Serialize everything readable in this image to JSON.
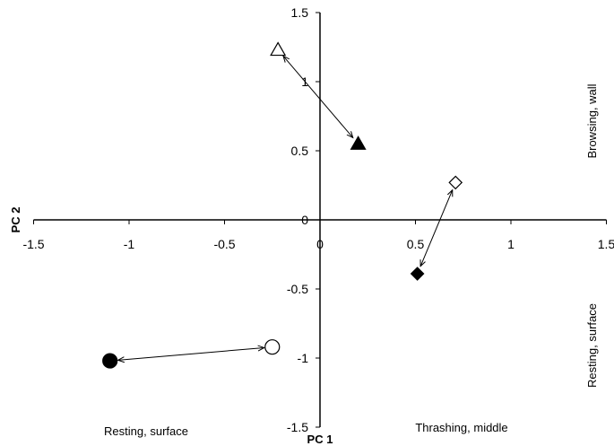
{
  "chart_data": {
    "type": "scatter",
    "xlabel": "PC 1",
    "ylabel": "PC 2",
    "xlim": [
      -1.5,
      1.5
    ],
    "ylim": [
      -1.5,
      1.5
    ],
    "x_ticks": [
      "-1.5",
      "-1",
      "-0.5",
      "0",
      "0.5",
      "1",
      "1.5"
    ],
    "y_ticks": [
      "1.5",
      "1",
      "0.5",
      "0",
      "-0.5",
      "-1",
      "-1.5"
    ],
    "grid": false,
    "legend": "none",
    "points": [
      {
        "marker": "triangle",
        "fill": "open",
        "x": -0.22,
        "y": 1.23
      },
      {
        "marker": "triangle",
        "fill": "filled",
        "x": 0.2,
        "y": 0.55
      },
      {
        "marker": "diamond",
        "fill": "open",
        "x": 0.71,
        "y": 0.27
      },
      {
        "marker": "diamond",
        "fill": "filled",
        "x": 0.51,
        "y": -0.39
      },
      {
        "marker": "circle",
        "fill": "open",
        "x": -0.25,
        "y": -0.92
      },
      {
        "marker": "circle",
        "fill": "filled",
        "x": -1.1,
        "y": -1.02
      }
    ],
    "arrows": [
      {
        "from": 0,
        "to": 1
      },
      {
        "from": 2,
        "to": 3
      },
      {
        "from": 4,
        "to": 5
      }
    ],
    "annotations": [
      "Browsing, wall",
      "Resting, surface",
      "Resting, surface",
      "Thrashing, middle"
    ]
  }
}
